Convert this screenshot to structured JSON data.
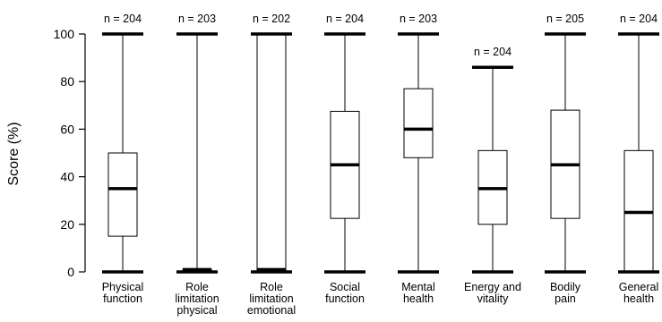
{
  "chart_data": {
    "type": "boxplot",
    "ylabel": "Score (%)",
    "ylim": [
      0,
      100
    ],
    "yticks": [
      0,
      20,
      40,
      60,
      80,
      100
    ],
    "grid": false,
    "categories": [
      {
        "lines": [
          "Physical",
          "function"
        ],
        "n": "n = 204",
        "min": 0,
        "q1": 15,
        "median": 35,
        "q3": 50,
        "max": 100
      },
      {
        "lines": [
          "Role",
          "limitation",
          "physical"
        ],
        "n": "n = 203",
        "min": 0,
        "q1": 0,
        "median": 1,
        "q3": 1,
        "max": 100
      },
      {
        "lines": [
          "Role",
          "limitation",
          "emotional"
        ],
        "n": "n = 202",
        "min": 0,
        "q1": 0,
        "median": 1,
        "q3": 100,
        "max": 100
      },
      {
        "lines": [
          "Social",
          "function"
        ],
        "n": "n = 204",
        "min": 0,
        "q1": 22.5,
        "median": 45,
        "q3": 67.5,
        "max": 100
      },
      {
        "lines": [
          "Mental",
          "health"
        ],
        "n": "n = 203",
        "min": 0,
        "q1": 48,
        "median": 60,
        "q3": 77,
        "max": 100
      },
      {
        "lines": [
          "Energy and",
          "vitality"
        ],
        "n": "n = 204",
        "min": 0,
        "q1": 20,
        "median": 35,
        "q3": 51,
        "max": 86
      },
      {
        "lines": [
          "Bodily",
          "pain"
        ],
        "n": "n = 205",
        "min": 0,
        "q1": 22.5,
        "median": 45,
        "q3": 68,
        "max": 100
      },
      {
        "lines": [
          "General",
          "health"
        ],
        "n": "n = 204",
        "min": 0,
        "q1": 0,
        "median": 25,
        "q3": 51,
        "max": 100
      }
    ]
  }
}
